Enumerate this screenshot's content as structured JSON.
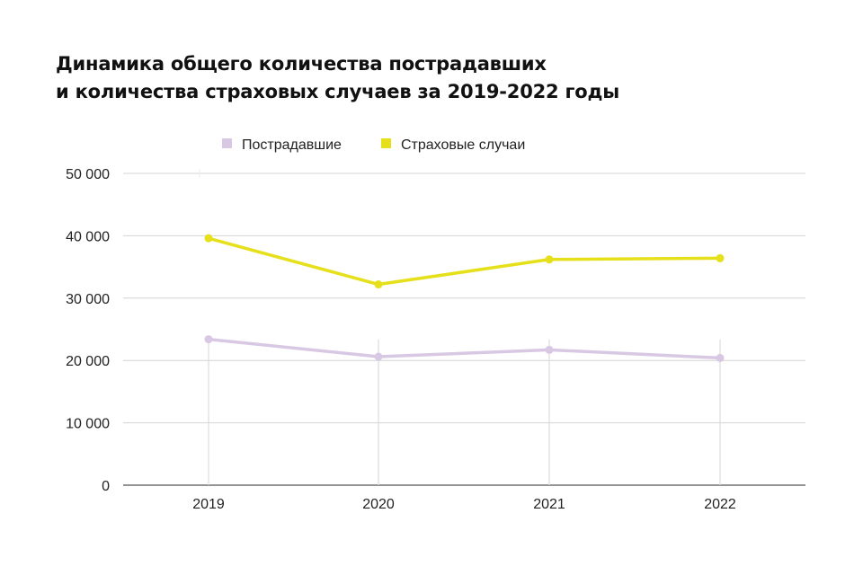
{
  "chart_data": {
    "type": "line",
    "title_lines": [
      "Динамика общего количества пострадавших",
      "и количества страховых случаев за 2019-2022 годы"
    ],
    "categories": [
      "2019",
      "2020",
      "2021",
      "2022"
    ],
    "series": [
      {
        "name": "Пострадавшие",
        "color": "#d8c8e4",
        "values": [
          23400,
          20600,
          21700,
          20400
        ]
      },
      {
        "name": "Страховые случаи",
        "color": "#e6e01a",
        "values": [
          39600,
          32200,
          36200,
          36400
        ]
      }
    ],
    "ylim": [
      0,
      50000
    ],
    "yticks": [
      0,
      10000,
      20000,
      30000,
      40000,
      50000
    ],
    "ytick_labels": [
      "0",
      "10 000",
      "20 000",
      "30 000",
      "40 000",
      "50 000"
    ],
    "grid": true,
    "legend": "top-center"
  }
}
